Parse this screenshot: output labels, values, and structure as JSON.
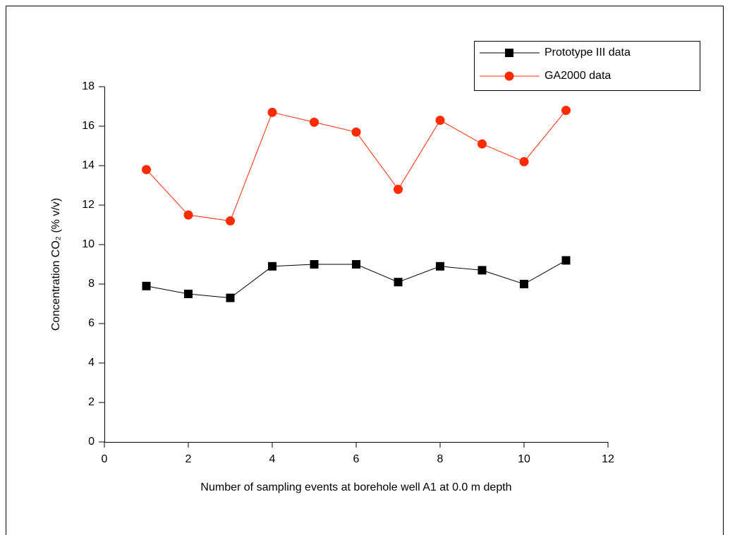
{
  "chart_data": {
    "type": "line",
    "x_label": "Number of sampling events at borehole well A1 at 0.0 m depth",
    "y_label": "Concentration CO₂ (% v/v)",
    "x": [
      1,
      2,
      3,
      4,
      5,
      6,
      7,
      8,
      9,
      10,
      11
    ],
    "series": [
      {
        "name": "Prototype III data",
        "color": "#000000",
        "marker": "square",
        "values": [
          7.9,
          7.5,
          7.3,
          8.9,
          9.0,
          9.0,
          8.1,
          8.9,
          8.7,
          8.0,
          9.2
        ]
      },
      {
        "name": "GA2000 data",
        "color": "#ff2a00",
        "marker": "circle",
        "values": [
          13.8,
          11.5,
          11.2,
          16.7,
          16.2,
          15.7,
          12.8,
          16.3,
          15.1,
          14.2,
          16.8
        ]
      }
    ],
    "xlim": [
      0,
      12
    ],
    "xticks": [
      0,
      2,
      4,
      6,
      8,
      10,
      12
    ],
    "ylim": [
      0,
      18
    ],
    "yticks": [
      0,
      2,
      4,
      6,
      8,
      10,
      12,
      14,
      16,
      18
    ],
    "legend": "upper-right",
    "grid": false
  }
}
